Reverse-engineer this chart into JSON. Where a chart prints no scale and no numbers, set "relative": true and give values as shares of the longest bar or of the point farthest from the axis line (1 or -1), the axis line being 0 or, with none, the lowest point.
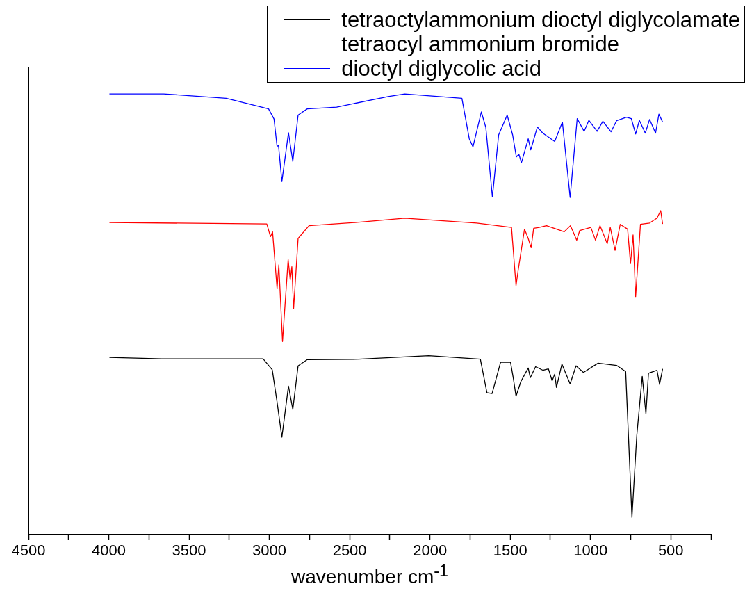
{
  "chart_data": {
    "type": "line",
    "xlabel": "wavenumber cm$^{-1}$",
    "relative": true,
    "legend": "top right",
    "marker": "none",
    "tick_labels": "x",
    "xlim": [
      4500,
      250
    ],
    "xticks": [
      4500,
      {
        "value": 4250,
        "label": null
      },
      4000,
      {
        "value": 3750,
        "label": null
      },
      3500,
      {
        "value": 3250,
        "label": null
      },
      3000,
      {
        "value": 2750,
        "label": null
      },
      2500,
      {
        "value": 2250,
        "label": null
      },
      2000,
      {
        "value": 1750,
        "label": null
      },
      1500,
      {
        "value": 1250,
        "label": null
      },
      1000,
      {
        "value": 750,
        "label": null
      },
      500,
      {
        "value": 250,
        "label": null
      }
    ],
    "series": [
      {
        "name": "tetraoctylammonium dioctyl diglycolamate",
        "color": "#000000",
        "x": [
          3996,
          3670,
          3039,
          2982,
          2952,
          2922,
          2881,
          2854,
          2821,
          2764,
          2443,
          2007,
          1686,
          1645,
          1613,
          1560,
          1498,
          1480,
          1464,
          1434,
          1388,
          1375,
          1342,
          1297,
          1262,
          1239,
          1223,
          1212,
          1178,
          1127,
          1090,
          1044,
          953,
          838,
          781,
          742,
          712,
          678,
          655,
          639,
          586,
          570,
          551
        ],
        "values": [
          0.402,
          0.399,
          0.399,
          0.374,
          0.301,
          0.221,
          0.337,
          0.284,
          0.383,
          0.397,
          0.398,
          0.406,
          0.398,
          0.322,
          0.32,
          0.391,
          0.391,
          0.353,
          0.314,
          0.347,
          0.378,
          0.356,
          0.381,
          0.373,
          0.376,
          0.349,
          0.364,
          0.334,
          0.387,
          0.342,
          0.383,
          0.368,
          0.389,
          0.384,
          0.37,
          0.039,
          0.224,
          0.359,
          0.274,
          0.366,
          0.373,
          0.341,
          0.376
        ]
      },
      {
        "name": "tetraocyl ammonium bromide",
        "color": "#ff0000",
        "x": [
          3996,
          3016,
          2993,
          2980,
          2952,
          2941,
          2918,
          2883,
          2870,
          2860,
          2849,
          2821,
          2753,
          2466,
          2157,
          1709,
          1492,
          1464,
          1450,
          1411,
          1388,
          1370,
          1354,
          1320,
          1274,
          1164,
          1125,
          1086,
          1067,
          998,
          969,
          941,
          896,
          877,
          847,
          815,
          769,
          751,
          735,
          719,
          689,
          632,
          586,
          563,
          551
        ],
        "values": [
          0.708,
          0.705,
          0.676,
          0.687,
          0.558,
          0.612,
          0.438,
          0.624,
          0.578,
          0.608,
          0.513,
          0.672,
          0.701,
          0.708,
          0.718,
          0.707,
          0.697,
          0.565,
          0.601,
          0.693,
          0.672,
          0.651,
          0.695,
          0.697,
          0.701,
          0.687,
          0.701,
          0.668,
          0.69,
          0.697,
          0.668,
          0.701,
          0.66,
          0.697,
          0.645,
          0.704,
          0.693,
          0.615,
          0.68,
          0.54,
          0.704,
          0.707,
          0.718,
          0.735,
          0.705
        ]
      },
      {
        "name": "dioctyl diglycolic acid",
        "color": "#0000ff",
        "x": [
          3996,
          3658,
          3269,
          3005,
          2971,
          2952,
          2943,
          2922,
          2881,
          2854,
          2821,
          2764,
          2581,
          2260,
          2157,
          1801,
          1755,
          1732,
          1680,
          1652,
          1611,
          1572,
          1519,
          1485,
          1462,
          1446,
          1430,
          1388,
          1372,
          1331,
          1297,
          1223,
          1175,
          1127,
          1083,
          1040,
          1010,
          959,
          923,
          872,
          838,
          776,
          746,
          719,
          696,
          659,
          632,
          595,
          574,
          551
        ],
        "values": [
          1,
          1,
          0.99,
          0.966,
          0.943,
          0.881,
          0.883,
          0.801,
          0.912,
          0.847,
          0.952,
          0.966,
          0.97,
          0.994,
          1,
          0.99,
          0.898,
          0.88,
          0.959,
          0.924,
          0.766,
          0.907,
          0.952,
          0.907,
          0.857,
          0.863,
          0.844,
          0.898,
          0.873,
          0.925,
          0.911,
          0.892,
          0.936,
          0.765,
          0.944,
          0.915,
          0.94,
          0.915,
          0.938,
          0.914,
          0.939,
          0.947,
          0.944,
          0.909,
          0.94,
          0.911,
          0.942,
          0.911,
          0.954,
          0.936
        ]
      }
    ]
  }
}
